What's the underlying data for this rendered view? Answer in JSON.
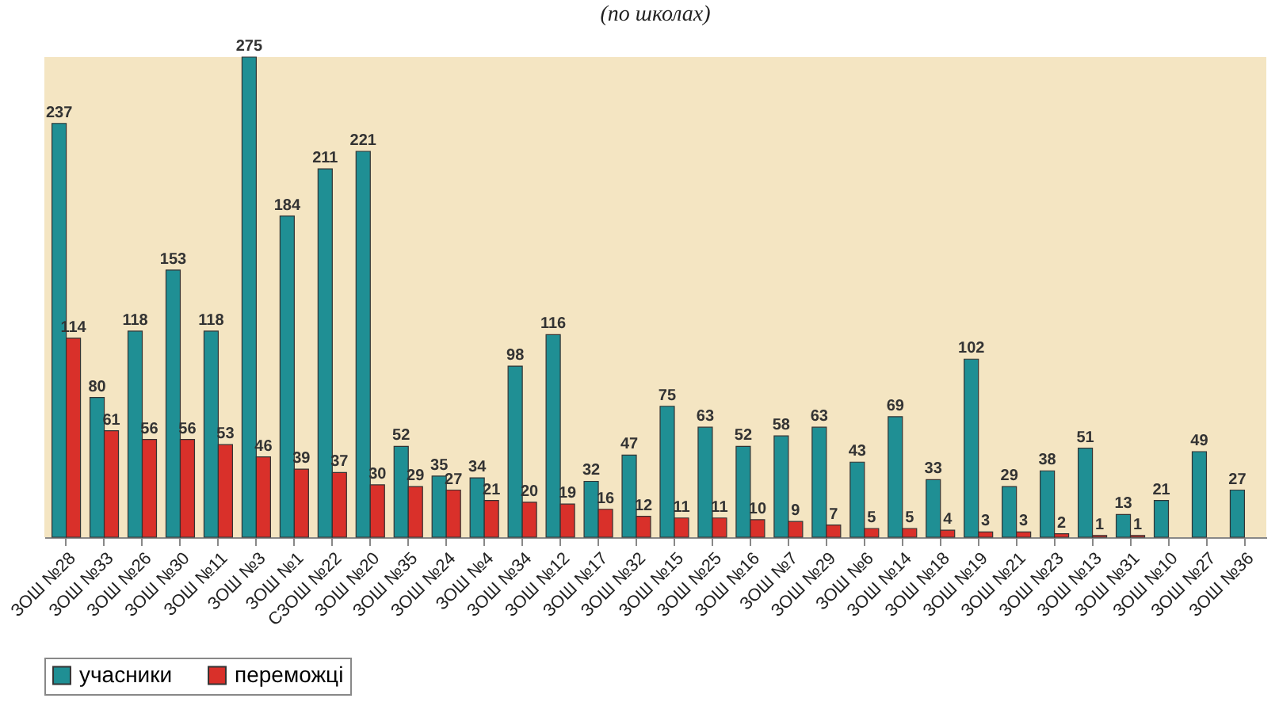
{
  "chart_data": {
    "type": "bar",
    "subtitle": "(по школах)",
    "categories": [
      "ЗОШ №28",
      "ЗОШ №33",
      "ЗОШ №26",
      "ЗОШ №30",
      "ЗОШ №11",
      "ЗОШ №3",
      "ЗОШ №1",
      "СЗОШ №22",
      "ЗОШ №20",
      "ЗОШ №35",
      "ЗОШ №24",
      "ЗОШ №4",
      "ЗОШ №34",
      "ЗОШ №12",
      "ЗОШ №17",
      "ЗОШ №32",
      "ЗОШ №15",
      "ЗОШ №25",
      "ЗОШ №16",
      "ЗОШ №7",
      "ЗОШ №29",
      "ЗОШ №6",
      "ЗОШ №14",
      "ЗОШ №18",
      "ЗОШ №19",
      "ЗОШ №21",
      "ЗОШ №23",
      "ЗОШ №13",
      "ЗОШ №31",
      "ЗОШ №10",
      "ЗОШ №27",
      "ЗОШ №36"
    ],
    "series": [
      {
        "name": "учасники",
        "color": "#1f8f94",
        "values": [
          237,
          80,
          118,
          153,
          118,
          275,
          184,
          211,
          221,
          52,
          35,
          34,
          98,
          116,
          32,
          47,
          75,
          63,
          52,
          58,
          63,
          43,
          69,
          33,
          102,
          29,
          38,
          51,
          13,
          21,
          49,
          27
        ]
      },
      {
        "name": "переможці",
        "color": "#d9302a",
        "values": [
          114,
          61,
          56,
          56,
          53,
          46,
          39,
          37,
          30,
          29,
          27,
          21,
          20,
          19,
          16,
          12,
          11,
          11,
          10,
          9,
          7,
          5,
          5,
          4,
          3,
          3,
          2,
          1,
          1,
          null,
          null,
          null
        ]
      }
    ],
    "data_labels": true,
    "legend": "bottom"
  }
}
